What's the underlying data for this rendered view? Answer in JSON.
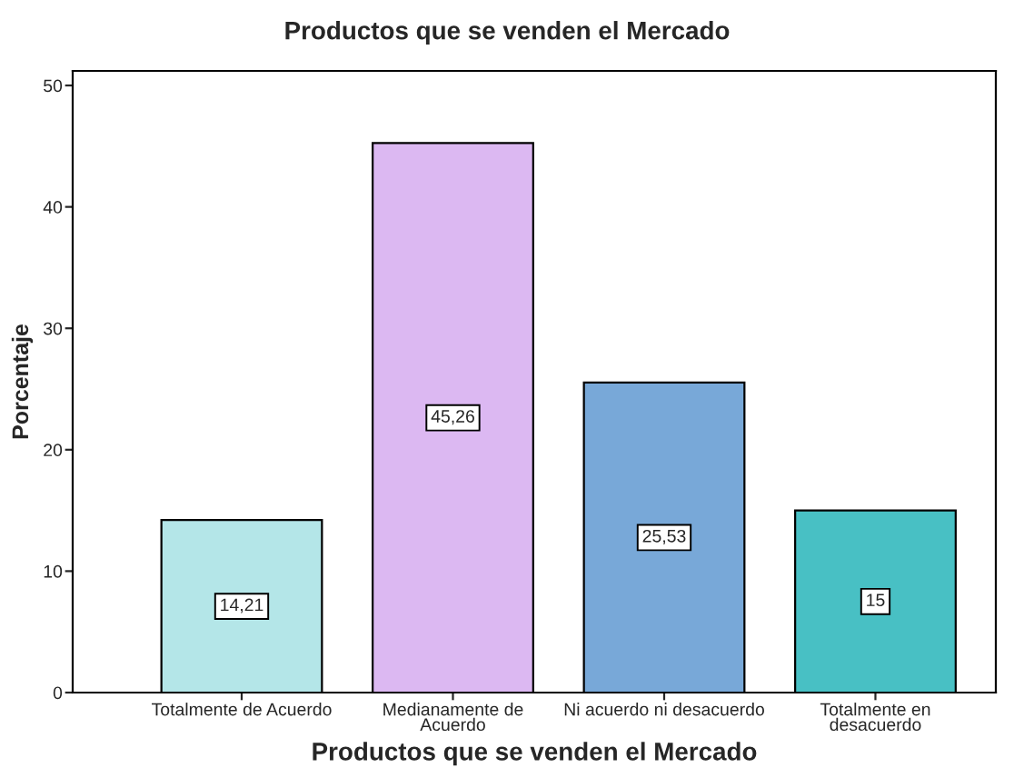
{
  "chart_data": {
    "type": "bar",
    "title": "Productos que se venden el Mercado",
    "xlabel": "Productos que se venden el Mercado",
    "ylabel": "Porcentaje",
    "categories": [
      "Totalmente de Acuerdo",
      "Medianamente de\nAcuerdo",
      "Ni acuerdo ni desacuerdo",
      "Totalmente en\ndesacuerdo"
    ],
    "values": [
      14.21,
      45.26,
      25.53,
      15
    ],
    "value_labels": [
      "14,21",
      "45,26",
      "25,53",
      "15"
    ],
    "colors": [
      "#b4e6e8",
      "#dcb8f2",
      "#78a8d8",
      "#48c0c4"
    ],
    "ylim": [
      0,
      51.2
    ],
    "yticks": [
      0,
      10,
      20,
      30,
      40,
      50
    ],
    "grid": false,
    "legend": false
  }
}
